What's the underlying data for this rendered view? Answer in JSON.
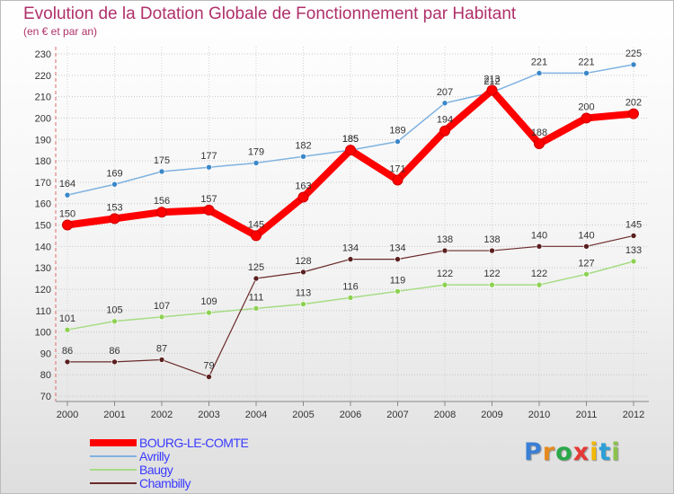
{
  "title": "Evolution de la Dotation Globale de Fonctionnement par Habitant",
  "subtitle": "(en € et par an)",
  "logo": {
    "letters": [
      "P",
      "r",
      "o",
      "x",
      "i",
      "t",
      "i"
    ],
    "colors": [
      "#3a7fd5",
      "#e58a1f",
      "#2aa84a",
      "#e53935",
      "#f2b705",
      "#2d9fd8",
      "#8bc34a"
    ]
  },
  "chart_data": {
    "type": "line",
    "title": "Evolution de la Dotation Globale de Fonctionnement par Habitant",
    "subtitle": "(en € et par an)",
    "xlabel": "",
    "ylabel": "",
    "ylim": [
      70,
      230
    ],
    "yticks": [
      70,
      80,
      90,
      100,
      110,
      120,
      130,
      140,
      150,
      160,
      170,
      180,
      190,
      200,
      210,
      220,
      230
    ],
    "grid": true,
    "legend_position": "bottom-left",
    "x": [
      "2000",
      "2001",
      "2002",
      "2003",
      "2004",
      "2005",
      "2006",
      "2007",
      "2008",
      "2009",
      "2010",
      "2011",
      "2012"
    ],
    "series": [
      {
        "name": "BOURG-LE-COMTE",
        "color": "#ff0000",
        "marker": "#ff0000",
        "width": 8,
        "values": [
          150,
          153,
          156,
          157,
          145,
          163,
          185,
          171,
          194,
          213,
          188,
          200,
          202
        ]
      },
      {
        "name": "Avrilly",
        "color": "#7fb2e0",
        "marker": "#3a87c8",
        "width": 1.5,
        "values": [
          164,
          169,
          175,
          177,
          179,
          182,
          185,
          189,
          207,
          212,
          221,
          221,
          225
        ]
      },
      {
        "name": "Baugy",
        "color": "#a6dc84",
        "marker": "#8ed152",
        "width": 1.5,
        "values": [
          101,
          105,
          107,
          109,
          111,
          113,
          116,
          119,
          122,
          122,
          122,
          127,
          133
        ]
      },
      {
        "name": "Chambilly",
        "color": "#6b2a2a",
        "marker": "#5a1f1f",
        "width": 1.2,
        "values": [
          86,
          86,
          87,
          79,
          125,
          128,
          134,
          134,
          138,
          138,
          140,
          140,
          145
        ]
      }
    ]
  }
}
